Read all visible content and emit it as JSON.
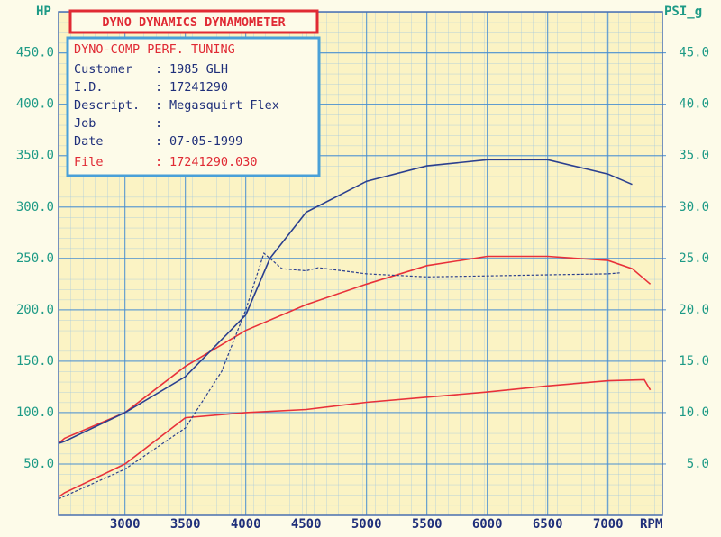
{
  "chart_data": {
    "type": "line",
    "x_label": "RPM",
    "y_label": "HP",
    "y2_label": "PSI_g",
    "xlim": [
      2450,
      7450
    ],
    "ylim": [
      0,
      490
    ],
    "y2lim": [
      0,
      49
    ],
    "xticks": [
      3000,
      3500,
      4000,
      4500,
      5000,
      5500,
      6000,
      6500,
      7000
    ],
    "yticks": [
      {
        "value": 50,
        "label": "50.0"
      },
      {
        "value": 100,
        "label": "100.0"
      },
      {
        "value": 150,
        "label": "150.0"
      },
      {
        "value": 200,
        "label": "200.0"
      },
      {
        "value": 250,
        "label": "250.0"
      },
      {
        "value": 300,
        "label": "300.0"
      },
      {
        "value": 350,
        "label": "350.0"
      },
      {
        "value": 400,
        "label": "400.0"
      },
      {
        "value": 450,
        "label": "450.0"
      }
    ],
    "y2ticks": [
      {
        "value": 5,
        "label": "5.0"
      },
      {
        "value": 10,
        "label": "10.0"
      },
      {
        "value": 15,
        "label": "15.0"
      },
      {
        "value": 20,
        "label": "20.0"
      },
      {
        "value": 25,
        "label": "25.0"
      },
      {
        "value": 30,
        "label": "30.0"
      },
      {
        "value": 35,
        "label": "35.0"
      },
      {
        "value": 40,
        "label": "40.0"
      },
      {
        "value": 45,
        "label": "45.0"
      }
    ],
    "grid": true,
    "series": [
      {
        "color": "#e8313a",
        "x": [
          2450,
          2500,
          3000,
          3500,
          4000,
          4500,
          5000,
          5500,
          6000,
          6500,
          7000,
          7200,
          7350
        ],
        "values": [
          70,
          75,
          100,
          145,
          180,
          205,
          225,
          243,
          252,
          252,
          248,
          240,
          225
        ]
      },
      {
        "color": "#e8313a",
        "x": [
          2450,
          2500,
          3000,
          3500,
          4000,
          4500,
          5000,
          5500,
          6000,
          6500,
          7000,
          7300,
          7350
        ],
        "values": [
          18,
          22,
          50,
          95,
          100,
          103,
          110,
          115,
          120,
          126,
          131,
          132,
          122
        ]
      },
      {
        "color": "#2a3f8f",
        "axis": "y2",
        "x": [
          2450,
          2500,
          3000,
          3500,
          4000,
          4200,
          4500,
          5000,
          5500,
          6000,
          6500,
          7000,
          7200
        ],
        "values": [
          7.0,
          7.2,
          10.0,
          13.5,
          19.5,
          25.0,
          29.5,
          32.5,
          34.0,
          34.6,
          34.6,
          33.2,
          32.2
        ]
      },
      {
        "color": "#2a3f8f",
        "axis": "y2",
        "dashed": true,
        "x": [
          2450,
          3000,
          3500,
          3800,
          4000,
          4150,
          4300,
          4500,
          4600,
          5000,
          5500,
          6000,
          6500,
          7000,
          7100
        ],
        "values": [
          1.6,
          4.5,
          8.5,
          14.0,
          20.0,
          25.5,
          24.0,
          23.8,
          24.1,
          23.5,
          23.2,
          23.3,
          23.4,
          23.5,
          23.6
        ]
      }
    ]
  },
  "info_box": {
    "title": "DYNO DYNAMICS DYNAMOMETER",
    "subtitle": "DYNO-COMP PERF. TUNING",
    "rows": [
      [
        "Customer",
        "1985 GLH"
      ],
      [
        "I.D.",
        "17241290"
      ],
      [
        "Descript.",
        "Megasquirt Flex"
      ],
      [
        "Job",
        ""
      ],
      [
        "Date",
        "07-05-1999"
      ],
      [
        "File",
        "17241290.030"
      ]
    ]
  }
}
